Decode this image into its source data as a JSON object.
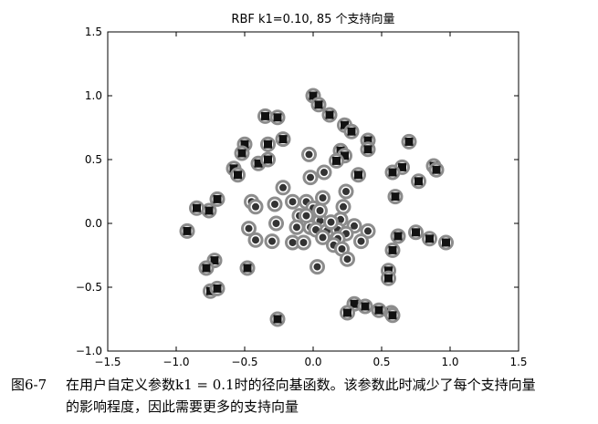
{
  "chart_data": {
    "type": "scatter",
    "title": "RBF k1=0.10, 85 个支持向量",
    "xlim": [
      -1.5,
      1.5
    ],
    "ylim": [
      -1.0,
      1.5
    ],
    "xticks": [
      "−1.5",
      "−1.0",
      "−0.5",
      "0.0",
      "0.5",
      "1.0",
      "1.5"
    ],
    "yticks": [
      "1.5",
      "1.0",
      "0.5",
      "0.0",
      "−0.5",
      "−1.0"
    ],
    "grid": false,
    "series": [
      {
        "marker": "square",
        "points": [
          [
            0.0,
            1.0
          ],
          [
            0.04,
            0.93
          ],
          [
            0.12,
            0.85
          ],
          [
            -0.35,
            0.84
          ],
          [
            -0.26,
            0.83
          ],
          [
            0.23,
            0.77
          ],
          [
            0.28,
            0.72
          ],
          [
            0.4,
            0.65
          ],
          [
            0.7,
            0.64
          ],
          [
            -0.5,
            0.62
          ],
          [
            -0.33,
            0.62
          ],
          [
            -0.22,
            0.66
          ],
          [
            -0.52,
            0.55
          ],
          [
            0.2,
            0.57
          ],
          [
            0.23,
            0.53
          ],
          [
            0.4,
            0.58
          ],
          [
            0.65,
            0.44
          ],
          [
            0.58,
            0.4
          ],
          [
            0.88,
            0.45
          ],
          [
            0.9,
            0.42
          ],
          [
            -0.58,
            0.43
          ],
          [
            -0.55,
            0.38
          ],
          [
            -0.4,
            0.47
          ],
          [
            -0.33,
            0.5
          ],
          [
            0.17,
            0.49
          ],
          [
            0.33,
            0.38
          ],
          [
            0.77,
            0.33
          ],
          [
            0.6,
            0.21
          ],
          [
            -0.7,
            0.19
          ],
          [
            -0.76,
            0.1
          ],
          [
            -0.85,
            0.12
          ],
          [
            -0.92,
            -0.06
          ],
          [
            0.58,
            -0.21
          ],
          [
            0.62,
            -0.1
          ],
          [
            0.75,
            -0.07
          ],
          [
            0.85,
            -0.12
          ],
          [
            0.97,
            -0.15
          ],
          [
            -0.72,
            -0.29
          ],
          [
            -0.78,
            -0.35
          ],
          [
            -0.48,
            -0.35
          ],
          [
            0.55,
            -0.37
          ],
          [
            0.55,
            -0.43
          ],
          [
            -0.75,
            -0.53
          ],
          [
            -0.7,
            -0.51
          ],
          [
            0.3,
            -0.63
          ],
          [
            0.38,
            -0.65
          ],
          [
            0.48,
            -0.68
          ],
          [
            0.57,
            -0.7
          ],
          [
            0.25,
            -0.7
          ],
          [
            0.58,
            -0.72
          ],
          [
            -0.26,
            -0.75
          ]
        ]
      },
      {
        "marker": "circle",
        "points": [
          [
            -0.03,
            0.54
          ],
          [
            0.08,
            0.4
          ],
          [
            -0.02,
            0.36
          ],
          [
            -0.22,
            0.28
          ],
          [
            -0.28,
            0.15
          ],
          [
            -0.45,
            0.17
          ],
          [
            -0.42,
            0.13
          ],
          [
            -0.15,
            0.17
          ],
          [
            -0.05,
            0.17
          ],
          [
            0.07,
            0.2
          ],
          [
            0.0,
            0.12
          ],
          [
            0.24,
            0.25
          ],
          [
            0.22,
            0.13
          ],
          [
            -0.1,
            0.06
          ],
          [
            0.05,
            0.02
          ],
          [
            0.2,
            0.03
          ],
          [
            0.3,
            -0.02
          ],
          [
            -0.47,
            -0.04
          ],
          [
            -0.27,
            0.0
          ],
          [
            -0.12,
            -0.03
          ],
          [
            -0.02,
            -0.03
          ],
          [
            0.02,
            -0.05
          ],
          [
            0.1,
            -0.06
          ],
          [
            0.18,
            -0.05
          ],
          [
            0.24,
            -0.08
          ],
          [
            0.4,
            -0.06
          ],
          [
            -0.42,
            -0.13
          ],
          [
            -0.3,
            -0.14
          ],
          [
            -0.15,
            -0.15
          ],
          [
            -0.07,
            -0.15
          ],
          [
            0.07,
            -0.11
          ],
          [
            0.18,
            -0.12
          ],
          [
            0.35,
            -0.14
          ],
          [
            0.15,
            -0.17
          ],
          [
            0.21,
            -0.2
          ],
          [
            0.25,
            -0.28
          ],
          [
            0.03,
            -0.34
          ],
          [
            0.05,
            0.1
          ],
          [
            -0.05,
            0.06
          ],
          [
            0.13,
            0.01
          ]
        ]
      }
    ]
  },
  "caption": {
    "label": "图6-7",
    "line1": "在用户自定义参数k1 = 0.1时的径向基函数。该参数此时减少了每个支持向量",
    "line2": "的影响程度，因此需要更多的支持向量"
  }
}
